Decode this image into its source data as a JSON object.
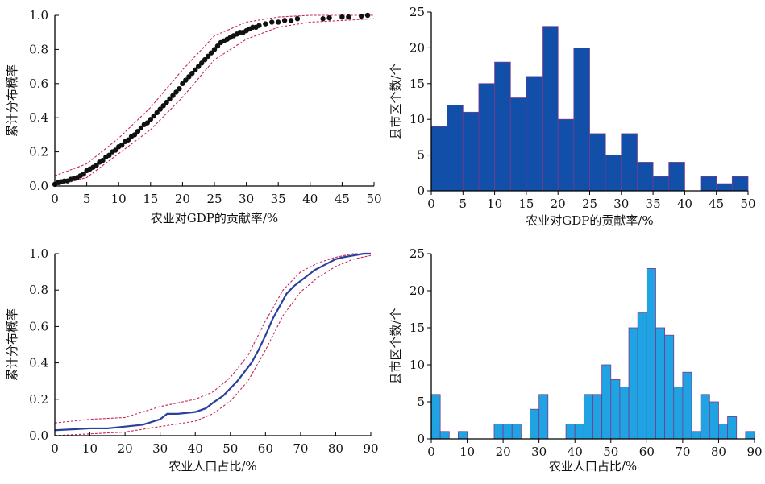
{
  "colors": {
    "band": "#c8245a",
    "dots": "#111111",
    "cdf_line": "#2b3f9e",
    "bar_dark": "#124fa8",
    "bar_light": "#1fa3e2",
    "bar_edge": "#7a3a8c"
  },
  "chart_data": [
    {
      "id": "gdp_cdf",
      "type": "scatter",
      "xlabel": "农业对GDP的贡献率/%",
      "ylabel": "累计分布概率",
      "xlim": [
        0,
        50
      ],
      "ylim": [
        0,
        1.0
      ],
      "xticks": [
        0,
        5,
        10,
        15,
        20,
        25,
        30,
        35,
        40,
        45,
        50
      ],
      "xtick_labels": [
        "0",
        "5",
        "10",
        "15",
        "20",
        "25",
        "30",
        "35",
        "40",
        "45",
        "50"
      ],
      "yticks": [
        0,
        0.2,
        0.4,
        0.6,
        0.8,
        1.0
      ],
      "ytick_labels": [
        "0.0",
        "0.2",
        "0.4",
        "0.6",
        "0.8",
        "1.0"
      ],
      "points": [
        [
          0.0,
          0.01
        ],
        [
          0.5,
          0.02
        ],
        [
          1.0,
          0.025
        ],
        [
          1.5,
          0.03
        ],
        [
          2.0,
          0.03
        ],
        [
          2.5,
          0.04
        ],
        [
          3.0,
          0.045
        ],
        [
          3.5,
          0.05
        ],
        [
          4.0,
          0.06
        ],
        [
          4.5,
          0.07
        ],
        [
          5.0,
          0.09
        ],
        [
          5.5,
          0.1
        ],
        [
          6.0,
          0.11
        ],
        [
          6.5,
          0.12
        ],
        [
          7.0,
          0.14
        ],
        [
          7.5,
          0.15
        ],
        [
          8.0,
          0.17
        ],
        [
          8.5,
          0.18
        ],
        [
          9.0,
          0.2
        ],
        [
          9.5,
          0.21
        ],
        [
          10.0,
          0.23
        ],
        [
          10.5,
          0.24
        ],
        [
          11.0,
          0.26
        ],
        [
          11.5,
          0.27
        ],
        [
          12.0,
          0.29
        ],
        [
          12.5,
          0.3
        ],
        [
          13.0,
          0.32
        ],
        [
          13.5,
          0.34
        ],
        [
          14.0,
          0.36
        ],
        [
          14.5,
          0.37
        ],
        [
          15.0,
          0.39
        ],
        [
          15.5,
          0.41
        ],
        [
          16.0,
          0.43
        ],
        [
          16.5,
          0.45
        ],
        [
          17.0,
          0.47
        ],
        [
          17.5,
          0.49
        ],
        [
          18.0,
          0.51
        ],
        [
          18.5,
          0.53
        ],
        [
          19.0,
          0.55
        ],
        [
          19.5,
          0.57
        ],
        [
          20.0,
          0.6
        ],
        [
          20.5,
          0.62
        ],
        [
          21.0,
          0.64
        ],
        [
          21.5,
          0.66
        ],
        [
          22.0,
          0.68
        ],
        [
          22.5,
          0.7
        ],
        [
          23.0,
          0.72
        ],
        [
          23.5,
          0.74
        ],
        [
          24.0,
          0.76
        ],
        [
          24.5,
          0.78
        ],
        [
          25.0,
          0.8
        ],
        [
          25.5,
          0.82
        ],
        [
          26.0,
          0.84
        ],
        [
          26.5,
          0.85
        ],
        [
          27.0,
          0.86
        ],
        [
          27.5,
          0.87
        ],
        [
          28.0,
          0.88
        ],
        [
          28.5,
          0.89
        ],
        [
          29.0,
          0.9
        ],
        [
          29.5,
          0.9
        ],
        [
          30.0,
          0.91
        ],
        [
          30.5,
          0.92
        ],
        [
          31.0,
          0.93
        ],
        [
          31.5,
          0.93
        ],
        [
          32.0,
          0.94
        ],
        [
          33.0,
          0.95
        ],
        [
          34.0,
          0.96
        ],
        [
          35.0,
          0.96
        ],
        [
          36.0,
          0.97
        ],
        [
          37.0,
          0.97
        ],
        [
          38.0,
          0.98
        ],
        [
          42.0,
          0.98
        ],
        [
          43.0,
          0.985
        ],
        [
          45.0,
          0.99
        ],
        [
          46.0,
          0.99
        ],
        [
          48.0,
          0.995
        ],
        [
          49.0,
          1.0
        ]
      ],
      "upper_band": [
        [
          0,
          0.06
        ],
        [
          5,
          0.13
        ],
        [
          10,
          0.28
        ],
        [
          15,
          0.46
        ],
        [
          20,
          0.68
        ],
        [
          25,
          0.88
        ],
        [
          30,
          0.96
        ],
        [
          35,
          0.99
        ],
        [
          40,
          1.0
        ],
        [
          50,
          1.0
        ]
      ],
      "lower_band": [
        [
          0,
          0.0
        ],
        [
          5,
          0.05
        ],
        [
          10,
          0.19
        ],
        [
          15,
          0.33
        ],
        [
          20,
          0.52
        ],
        [
          25,
          0.74
        ],
        [
          30,
          0.86
        ],
        [
          35,
          0.93
        ],
        [
          40,
          0.96
        ],
        [
          50,
          0.98
        ]
      ]
    },
    {
      "id": "gdp_hist",
      "type": "bar",
      "xlabel": "农业对GDP的贡献率/%",
      "ylabel": "县市区个数/个",
      "xlim": [
        0,
        50
      ],
      "ylim": [
        0,
        25
      ],
      "bin_width": 2.5,
      "xticks": [
        0,
        5,
        10,
        15,
        20,
        25,
        30,
        35,
        40,
        45,
        50
      ],
      "xtick_labels": [
        "0",
        "5",
        "10",
        "15",
        "20",
        "25",
        "30",
        "35",
        "40",
        "45",
        "50"
      ],
      "yticks": [
        0,
        5,
        10,
        15,
        20,
        25
      ],
      "ytick_labels": [
        "0",
        "5",
        "10",
        "15",
        "20",
        "25"
      ],
      "bin_starts": [
        0,
        2.5,
        5,
        7.5,
        10,
        12.5,
        15,
        17.5,
        20,
        22.5,
        25,
        27.5,
        30,
        32.5,
        35,
        37.5,
        40,
        42.5,
        45,
        47.5
      ],
      "values": [
        9,
        12,
        11,
        15,
        18,
        13,
        16,
        23,
        10,
        20,
        8,
        5,
        8,
        4,
        2,
        4,
        0,
        2,
        1,
        2
      ]
    },
    {
      "id": "pop_cdf",
      "type": "line",
      "xlabel": "农业人口占比/%",
      "ylabel": "累计分布概率",
      "xlim": [
        0,
        90
      ],
      "ylim": [
        0,
        1.0
      ],
      "xticks": [
        0,
        10,
        20,
        30,
        40,
        50,
        60,
        70,
        80,
        90
      ],
      "xtick_labels": [
        "0",
        "10",
        "20",
        "30",
        "40",
        "50",
        "60",
        "70",
        "80",
        "90"
      ],
      "yticks": [
        0,
        0.2,
        0.4,
        0.6,
        0.8,
        1.0
      ],
      "ytick_labels": [
        "0.0",
        "0.2",
        "0.4",
        "0.6",
        "0.8",
        "1.0"
      ],
      "line": [
        [
          0,
          0.03
        ],
        [
          5,
          0.035
        ],
        [
          10,
          0.04
        ],
        [
          15,
          0.04
        ],
        [
          20,
          0.05
        ],
        [
          25,
          0.06
        ],
        [
          30,
          0.09
        ],
        [
          32,
          0.12
        ],
        [
          35,
          0.12
        ],
        [
          40,
          0.13
        ],
        [
          43,
          0.15
        ],
        [
          45,
          0.18
        ],
        [
          48,
          0.22
        ],
        [
          50,
          0.26
        ],
        [
          52,
          0.3
        ],
        [
          54,
          0.35
        ],
        [
          56,
          0.4
        ],
        [
          58,
          0.47
        ],
        [
          60,
          0.55
        ],
        [
          62,
          0.64
        ],
        [
          64,
          0.71
        ],
        [
          66,
          0.78
        ],
        [
          68,
          0.82
        ],
        [
          70,
          0.85
        ],
        [
          72,
          0.88
        ],
        [
          74,
          0.91
        ],
        [
          76,
          0.93
        ],
        [
          78,
          0.95
        ],
        [
          80,
          0.97
        ],
        [
          82,
          0.98
        ],
        [
          85,
          0.99
        ],
        [
          88,
          1.0
        ],
        [
          90,
          1.0
        ]
      ],
      "upper_band": [
        [
          0,
          0.07
        ],
        [
          10,
          0.09
        ],
        [
          20,
          0.1
        ],
        [
          30,
          0.16
        ],
        [
          40,
          0.2
        ],
        [
          45,
          0.24
        ],
        [
          50,
          0.32
        ],
        [
          55,
          0.44
        ],
        [
          60,
          0.63
        ],
        [
          65,
          0.8
        ],
        [
          70,
          0.9
        ],
        [
          75,
          0.95
        ],
        [
          80,
          0.98
        ],
        [
          85,
          1.0
        ],
        [
          90,
          1.0
        ]
      ],
      "lower_band": [
        [
          0,
          0.0
        ],
        [
          10,
          0.01
        ],
        [
          20,
          0.02
        ],
        [
          30,
          0.05
        ],
        [
          40,
          0.08
        ],
        [
          45,
          0.12
        ],
        [
          50,
          0.19
        ],
        [
          55,
          0.3
        ],
        [
          60,
          0.47
        ],
        [
          65,
          0.66
        ],
        [
          70,
          0.79
        ],
        [
          75,
          0.87
        ],
        [
          80,
          0.93
        ],
        [
          85,
          0.97
        ],
        [
          90,
          0.99
        ]
      ]
    },
    {
      "id": "pop_hist",
      "type": "bar",
      "xlabel": "农业人口占比/%",
      "ylabel": "县市区个数/个",
      "xlim": [
        0,
        90
      ],
      "ylim": [
        0,
        25
      ],
      "bin_width": 2.5,
      "xticks": [
        0,
        10,
        20,
        30,
        40,
        50,
        60,
        70,
        80,
        90
      ],
      "xtick_labels": [
        "0",
        "10",
        "20",
        "30",
        "40",
        "50",
        "60",
        "70",
        "80",
        "90"
      ],
      "yticks": [
        0,
        5,
        10,
        15,
        20,
        25
      ],
      "ytick_labels": [
        "0",
        "5",
        "10",
        "15",
        "20",
        "25"
      ],
      "bin_starts": [
        0,
        2.5,
        7.5,
        17.5,
        20,
        22.5,
        27.5,
        30,
        37.5,
        40,
        42.5,
        45,
        47.5,
        50,
        52.5,
        55,
        57.5,
        60,
        62.5,
        65,
        67.5,
        70,
        72.5,
        75,
        77.5,
        80,
        82.5,
        87.5
      ],
      "values": [
        6,
        1,
        1,
        2,
        2,
        2,
        4,
        6,
        2,
        2,
        6,
        6,
        10,
        8,
        7,
        15,
        17,
        23,
        15,
        14,
        7,
        9,
        1,
        6,
        5,
        2,
        3,
        1
      ]
    }
  ]
}
